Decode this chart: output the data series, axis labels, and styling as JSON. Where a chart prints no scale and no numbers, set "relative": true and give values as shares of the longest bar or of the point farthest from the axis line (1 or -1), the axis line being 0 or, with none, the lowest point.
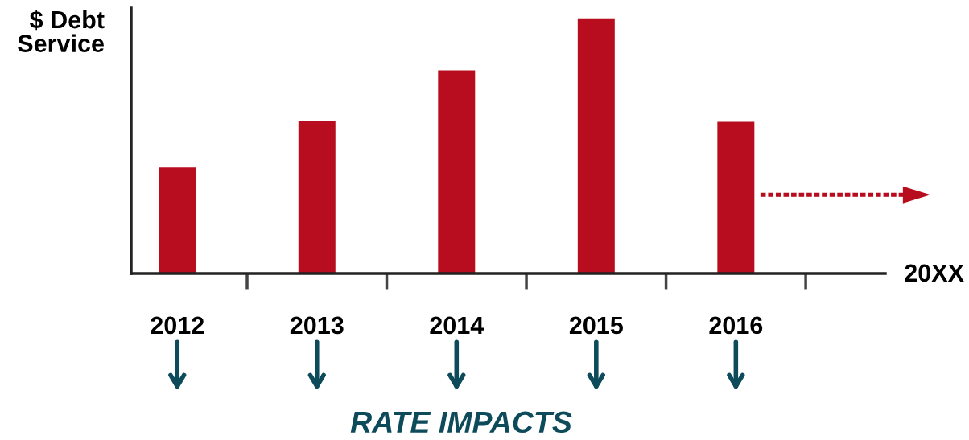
{
  "chart_data": {
    "type": "bar",
    "ylabel": "$ Debt\nService",
    "xlabel": "20XX",
    "categories": [
      "2012",
      "2013",
      "2014",
      "2015",
      "2016"
    ],
    "values": [
      0.415,
      0.597,
      0.796,
      1,
      0.594
    ],
    "color": "#b80d1e",
    "relative": true,
    "grid": false,
    "annotations": [
      "RATE IMPACTS"
    ]
  }
}
